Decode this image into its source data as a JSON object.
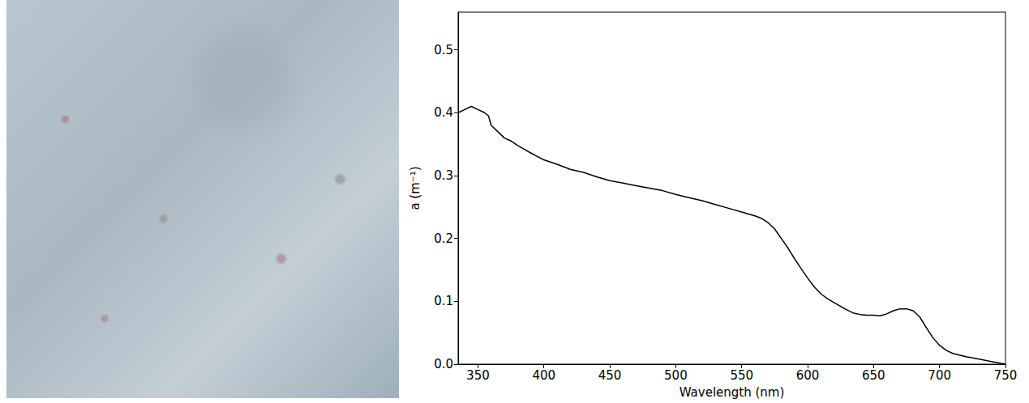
{
  "chart_data": {
    "type": "line",
    "x_label": "Wavelength (nm)",
    "y_label": "a (m⁻¹)",
    "color": "#000000",
    "grid": false,
    "xlim": [
      335,
      750
    ],
    "ylim": [
      0,
      0.56
    ],
    "xticks": [
      350,
      400,
      450,
      500,
      550,
      600,
      650,
      700,
      750
    ],
    "yticks": [
      {
        "value": 0,
        "label": "0.0"
      },
      {
        "value": 0.1,
        "label": "0.1"
      },
      {
        "value": 0.2,
        "label": "0.2"
      },
      {
        "value": 0.3,
        "label": "0.3"
      },
      {
        "value": 0.4,
        "label": "0.4"
      },
      {
        "value": 0.5,
        "label": "0.5"
      }
    ],
    "x": [
      335,
      340,
      345,
      350,
      355,
      358,
      360,
      365,
      370,
      375,
      380,
      385,
      390,
      400,
      410,
      420,
      430,
      440,
      450,
      460,
      470,
      480,
      490,
      500,
      510,
      520,
      530,
      540,
      550,
      560,
      565,
      570,
      575,
      580,
      585,
      590,
      595,
      600,
      605,
      610,
      615,
      620,
      625,
      630,
      635,
      640,
      645,
      650,
      655,
      660,
      665,
      670,
      675,
      680,
      685,
      690,
      695,
      700,
      705,
      710,
      720,
      730,
      740,
      750
    ],
    "values": [
      0.4,
      0.405,
      0.41,
      0.405,
      0.4,
      0.395,
      0.38,
      0.37,
      0.36,
      0.355,
      0.348,
      0.342,
      0.336,
      0.325,
      0.318,
      0.31,
      0.305,
      0.298,
      0.292,
      0.288,
      0.284,
      0.28,
      0.276,
      0.27,
      0.265,
      0.26,
      0.254,
      0.248,
      0.242,
      0.236,
      0.232,
      0.225,
      0.215,
      0.2,
      0.185,
      0.168,
      0.152,
      0.137,
      0.123,
      0.112,
      0.104,
      0.098,
      0.092,
      0.086,
      0.081,
      0.079,
      0.078,
      0.078,
      0.077,
      0.08,
      0.085,
      0.088,
      0.088,
      0.085,
      0.075,
      0.058,
      0.042,
      0.03,
      0.022,
      0.017,
      0.012,
      0.008,
      0.004,
      0
    ]
  }
}
